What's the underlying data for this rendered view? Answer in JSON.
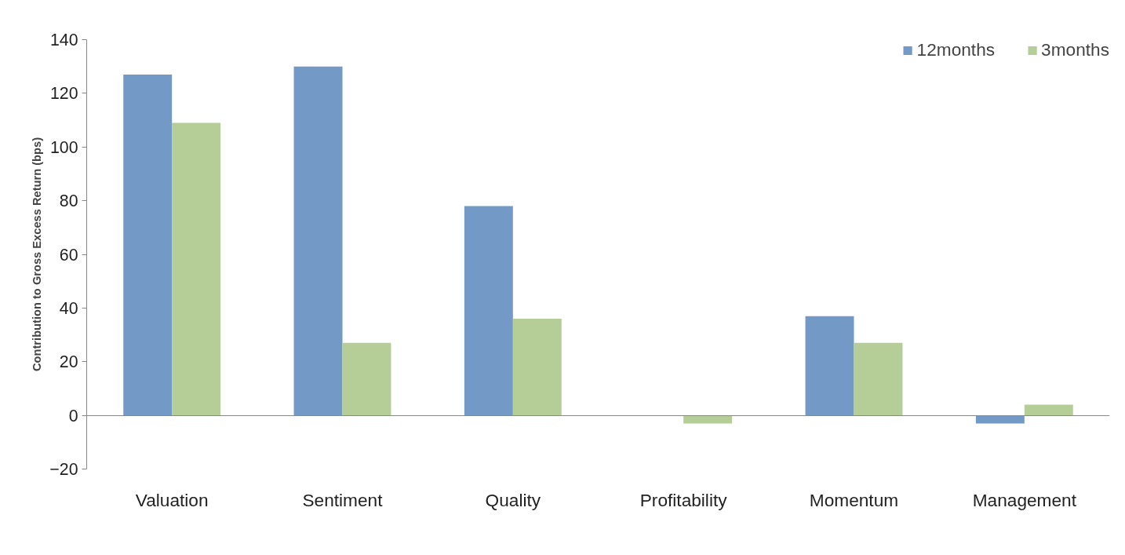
{
  "chart_data": {
    "type": "bar",
    "ylabel": "Contribution to Gross Excess Return (bps)",
    "categories": [
      "Valuation",
      "Sentiment",
      "Quality",
      "Profitability",
      "Momentum",
      "Management"
    ],
    "series": [
      {
        "name": "12months",
        "color": "#7399c6",
        "values": [
          127,
          130,
          78,
          0,
          37,
          -3
        ]
      },
      {
        "name": "3months",
        "color": "#b5cd96",
        "values": [
          109,
          27,
          36,
          -3,
          27,
          4
        ]
      }
    ],
    "ylim": [
      -20,
      140
    ],
    "yticks": [
      -20,
      0,
      20,
      40,
      60,
      80,
      100,
      120,
      140
    ],
    "legend": "top right"
  }
}
